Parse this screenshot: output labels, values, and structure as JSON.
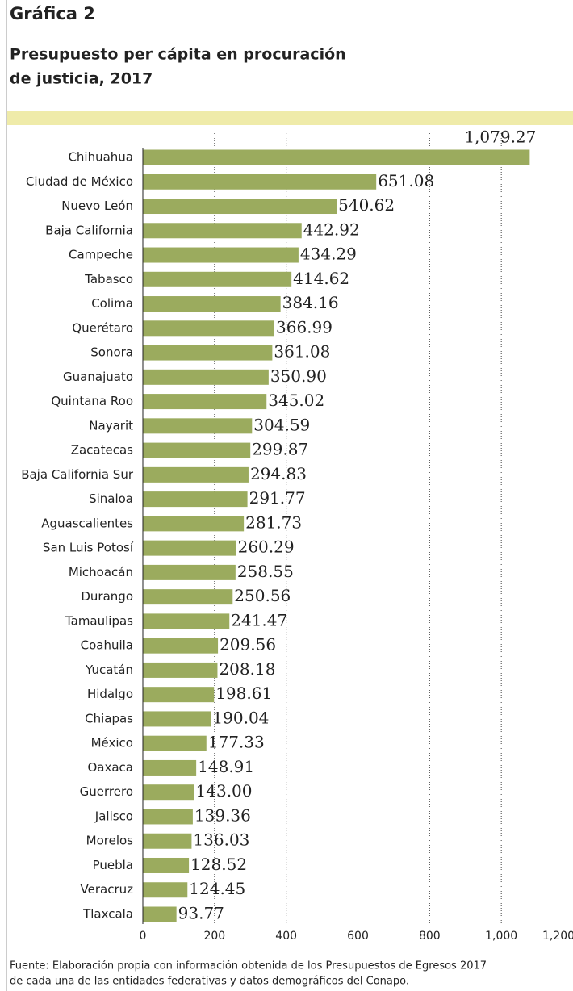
{
  "chart_data": {
    "type": "bar",
    "orientation": "horizontal",
    "label": "Gráfica 2",
    "title": "Presupuesto per cápita en procuración",
    "title_line2": "de justicia, 2017",
    "categories": [
      "Chihuahua",
      "Ciudad de México",
      "Nuevo León",
      "Baja California",
      "Campeche",
      "Tabasco",
      "Colima",
      "Querétaro",
      "Sonora",
      "Guanajuato",
      "Quintana Roo",
      "Nayarit",
      "Zacatecas",
      "Baja California Sur",
      "Sinaloa",
      "Aguascalientes",
      "San Luis Potosí",
      "Michoacán",
      "Durango",
      "Tamaulipas",
      "Coahuila",
      "Yucatán",
      "Hidalgo",
      "Chiapas",
      "México",
      "Oaxaca",
      "Guerrero",
      "Jalisco",
      "Morelos",
      "Puebla",
      "Veracruz",
      "Tlaxcala"
    ],
    "values": [
      1079.27,
      651.08,
      540.62,
      442.92,
      434.29,
      414.62,
      384.16,
      366.99,
      361.08,
      350.9,
      345.02,
      304.59,
      299.87,
      294.83,
      291.77,
      281.73,
      260.29,
      258.55,
      250.56,
      241.47,
      209.56,
      208.18,
      198.61,
      190.04,
      177.33,
      148.91,
      143.0,
      139.36,
      136.03,
      128.52,
      124.45,
      93.77
    ],
    "value_labels": [
      "1,079.27",
      "651.08",
      "540.62",
      "442.92",
      "434.29",
      "414.62",
      "384.16",
      "366.99",
      "361.08",
      "350.90",
      "345.02",
      "304.59",
      "299.87",
      "294.83",
      "291.77",
      "281.73",
      "260.29",
      "258.55",
      "250.56",
      "241.47",
      "209.56",
      "208.18",
      "198.61",
      "190.04",
      "177.33",
      "148.91",
      "143.00",
      "139.36",
      "136.03",
      "128.52",
      "124.45",
      "93.77"
    ],
    "color": "#9bab5e",
    "xlim": [
      0,
      1200
    ],
    "xticks": [
      0,
      200,
      400,
      600,
      800,
      {
        "value": 1000,
        "label": "1,000"
      },
      {
        "value": 1200,
        "label": "1,200"
      }
    ],
    "grid": true,
    "source_line1": "Fuente: Elaboración propia con información obtenida de los Presupuestos de Egresos 2017",
    "source_line2": "de cada una de las entidades federativas y datos demográficos del Conapo."
  }
}
